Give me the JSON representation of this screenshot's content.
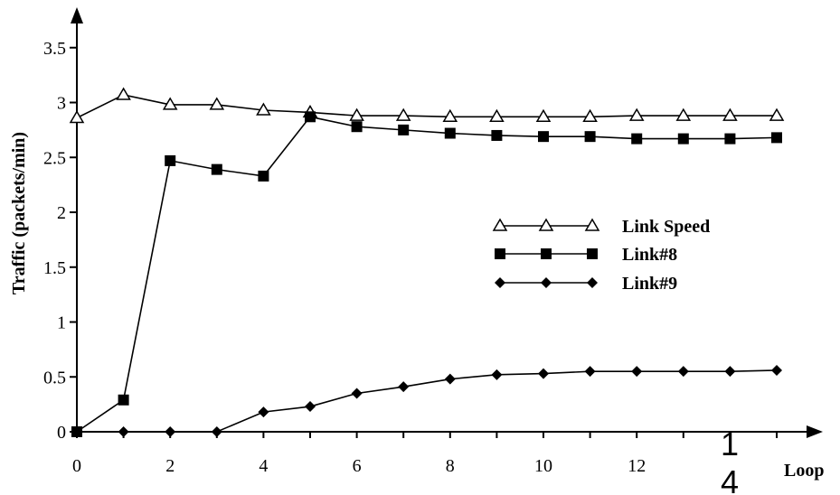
{
  "chart_data": {
    "type": "line",
    "title": "",
    "xlabel": "Loop",
    "ylabel": "Traffic (packets/min)",
    "xlim": [
      0,
      15.2
    ],
    "ylim": [
      0,
      3.8
    ],
    "x_ticks": [
      "0",
      "2",
      "4",
      "6",
      "8",
      "10",
      "12"
    ],
    "y_ticks": [
      "0",
      "0.5",
      "1",
      "1.5",
      "2",
      "2.5",
      "3",
      "3.5"
    ],
    "x": [
      0,
      1,
      2,
      3,
      4,
      5,
      6,
      7,
      8,
      9,
      10,
      11,
      12,
      13,
      14,
      15
    ],
    "series": [
      {
        "name": "Link Speed",
        "marker": "triangle-open",
        "values": [
          2.86,
          3.07,
          2.98,
          2.98,
          2.93,
          2.91,
          2.88,
          2.88,
          2.87,
          2.87,
          2.87,
          2.87,
          2.88,
          2.88,
          2.88,
          2.88
        ]
      },
      {
        "name": "Link#8",
        "marker": "square-filled",
        "values": [
          0.0,
          0.29,
          2.47,
          2.39,
          2.33,
          2.87,
          2.78,
          2.75,
          2.72,
          2.7,
          2.69,
          2.69,
          2.67,
          2.67,
          2.67,
          2.68
        ]
      },
      {
        "name": "Link#9",
        "marker": "diamond-filled",
        "values": [
          0.0,
          0.0,
          0.0,
          0.0,
          0.18,
          0.23,
          0.35,
          0.41,
          0.48,
          0.52,
          0.53,
          0.55,
          0.55,
          0.55,
          0.55,
          0.56
        ]
      }
    ],
    "legend_position": "right-middle",
    "grid": false,
    "stray_text": [
      "1",
      "4"
    ]
  }
}
